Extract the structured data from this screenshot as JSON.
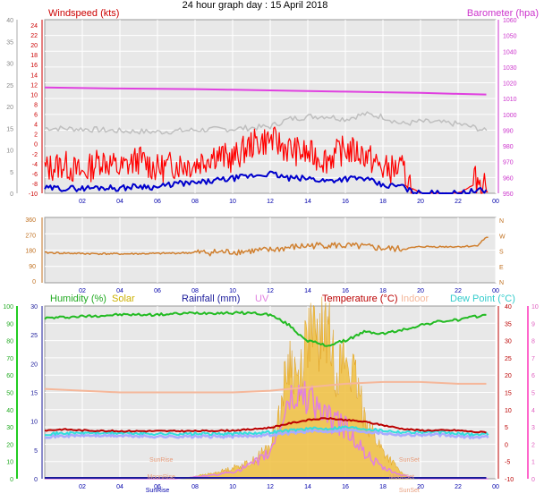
{
  "title": "24 hour graph day : 15 April 2018",
  "colors": {
    "wind": "#ff0000",
    "wind_avg": "#0000cc",
    "gust_bg": "#bfbfbf",
    "barometer": "#e040e0",
    "direction": "#d08030",
    "humidity": "#22bb22",
    "solar": "#f0c040",
    "rainfall": "#1a1a9a",
    "uv": "#e080e0",
    "temperature": "#bb0000",
    "indoor": "#f5b79a",
    "dewpoint": "#33dddd"
  },
  "chart_data": [
    {
      "type": "line",
      "panel": "wind-barometer",
      "left_axis": {
        "label": "Windspeed (kts)",
        "ticks": [
          "0",
          "5",
          "10",
          "15",
          "20",
          "25",
          "30",
          "35",
          "40"
        ],
        "ylim": [
          0,
          40
        ]
      },
      "left_axis_inner": {
        "ticks": [
          "-10",
          "-8",
          "-6",
          "-4",
          "-2",
          "0",
          "2",
          "4",
          "6",
          "8",
          "10",
          "12",
          "14",
          "16",
          "18",
          "20",
          "22",
          "24"
        ],
        "ylim": [
          -10,
          24
        ]
      },
      "right_axis": {
        "label": "Barometer (hpa)",
        "ticks": [
          "950",
          "960",
          "970",
          "980",
          "990",
          "1000",
          "1010",
          "1020",
          "1030",
          "1040",
          "1050",
          "1060"
        ],
        "ylim": [
          950,
          1060
        ]
      },
      "x_ticks": [
        "02",
        "04",
        "06",
        "08",
        "10",
        "12",
        "14",
        "16",
        "18",
        "20",
        "22",
        "00"
      ],
      "series": [
        {
          "role": "barometer",
          "unit": "hpa",
          "x": [
            0,
            2,
            4,
            6,
            8,
            10,
            12,
            14,
            16,
            18,
            20,
            22,
            23.5
          ],
          "y": [
            1017,
            1016.7,
            1016.4,
            1016.2,
            1016,
            1015.6,
            1015.2,
            1014.8,
            1014.4,
            1014,
            1013.6,
            1013,
            1012.6
          ]
        },
        {
          "role": "wind_gust_envelope",
          "unit": "kts",
          "x": [
            0,
            2,
            4,
            6,
            8,
            10,
            12,
            13,
            14,
            15,
            16,
            17,
            18,
            19,
            20,
            21,
            22,
            23,
            23.5
          ],
          "y": [
            13.2,
            13,
            12.6,
            12.4,
            12.8,
            13,
            13.5,
            15,
            15.5,
            15.6,
            15,
            16,
            15.5,
            14,
            14.5,
            14.3,
            14,
            13.2,
            12.5
          ]
        },
        {
          "role": "wind_speed",
          "unit": "kts",
          "x": [
            0,
            1,
            2,
            3,
            4,
            5,
            6,
            7,
            8,
            9,
            10,
            11,
            12,
            13,
            14,
            15,
            16,
            17,
            18,
            19,
            19.5,
            20,
            21,
            22,
            23,
            23.5
          ],
          "y": [
            4,
            5,
            3,
            6,
            4,
            6,
            4,
            5,
            5,
            7,
            6,
            9,
            10,
            8,
            7,
            6,
            8,
            7,
            4,
            4,
            1,
            0,
            0,
            0,
            2,
            1
          ]
        },
        {
          "role": "wind_average",
          "unit": "kts",
          "x": [
            0,
            1,
            2,
            3,
            4,
            5,
            6,
            7,
            8,
            9,
            10,
            11,
            12,
            13,
            14,
            15,
            16,
            17,
            18,
            19,
            19.5,
            20,
            21,
            22,
            23,
            23.5
          ],
          "y": [
            1,
            1,
            1,
            1.2,
            1,
            1.5,
            1.2,
            2,
            2,
            2.5,
            3,
            3.5,
            4,
            3,
            3,
            2.5,
            3,
            3,
            1.5,
            1.5,
            0.3,
            0,
            0,
            0,
            0.5,
            0.5
          ]
        }
      ]
    },
    {
      "type": "line",
      "panel": "wind-direction",
      "left_axis": {
        "ticks": [
          "0",
          "90",
          "180",
          "270",
          "360"
        ],
        "ylim": [
          0,
          360
        ]
      },
      "right_axis": {
        "ticks": [
          "N",
          "W",
          "S",
          "E",
          "N"
        ]
      },
      "x_ticks": [
        "02",
        "04",
        "06",
        "08",
        "10",
        "12",
        "14",
        "16",
        "18",
        "20",
        "22",
        "00"
      ],
      "series": [
        {
          "role": "direction",
          "unit": "deg",
          "x": [
            0,
            2,
            4,
            6,
            8,
            10,
            11,
            12,
            13,
            14,
            15,
            16,
            17,
            18,
            19,
            20,
            21,
            22,
            23,
            23.5
          ],
          "y": [
            165,
            160,
            158,
            160,
            165,
            170,
            175,
            180,
            195,
            205,
            210,
            205,
            200,
            190,
            185,
            200,
            200,
            200,
            205,
            255
          ]
        }
      ]
    },
    {
      "type": "line",
      "panel": "temperature-humidity",
      "legend": [
        "Humidity (%)",
        "Solar",
        "Rainfall (mm)",
        "UV",
        "Temperature (°C)",
        "Indoor",
        "Dew Point (°C)"
      ],
      "left_axis_humidity": {
        "ticks": [
          "0",
          "10",
          "20",
          "30",
          "40",
          "50",
          "60",
          "70",
          "80",
          "90",
          "100"
        ],
        "ylim": [
          0,
          100
        ]
      },
      "left_axis_rain": {
        "ticks": [
          "0",
          "5",
          "10",
          "15",
          "20",
          "25",
          "30"
        ],
        "ylim": [
          0,
          30
        ]
      },
      "right_axis_temp": {
        "ticks": [
          "-10",
          "-5",
          "0",
          "5",
          "10",
          "15",
          "20",
          "25",
          "30",
          "35",
          "40"
        ],
        "ylim": [
          -10,
          40
        ]
      },
      "right_axis_uv": {
        "ticks": [
          "0",
          "1",
          "2",
          "3",
          "4",
          "5",
          "6",
          "7",
          "8",
          "9",
          "10"
        ],
        "ylim": [
          0,
          10
        ]
      },
      "x_ticks": [
        "02",
        "04",
        "06",
        "08",
        "10",
        "12",
        "14",
        "16",
        "18",
        "20",
        "22",
        "00"
      ],
      "annotations": [
        "SunRise",
        "MoonRise",
        "SunRise",
        "SunSet",
        "MoonSet",
        "SunSet"
      ],
      "series": [
        {
          "name": "Humidity (%)",
          "role": "humidity",
          "unit": "%",
          "x": [
            0,
            2,
            4,
            6,
            8,
            10,
            11,
            12,
            13,
            13.5,
            14,
            15,
            16,
            17,
            18,
            19,
            20,
            21,
            22,
            23,
            23.5
          ],
          "y": [
            93,
            94,
            95,
            95,
            96,
            96,
            96,
            95,
            89,
            84,
            80,
            77,
            80,
            85,
            84,
            86,
            89,
            91,
            92,
            94,
            95
          ]
        },
        {
          "name": "Indoor",
          "role": "indoor",
          "unit": "°C",
          "x": [
            0,
            2,
            4,
            6,
            8,
            10,
            12,
            14,
            16,
            18,
            20,
            22,
            23.5
          ],
          "y": [
            16,
            15.5,
            15,
            15,
            15,
            15,
            15.5,
            16.5,
            17.5,
            18,
            18,
            17.5,
            17.5
          ]
        },
        {
          "name": "Temperature (°C)",
          "role": "temperature",
          "unit": "°C",
          "x": [
            0,
            1,
            2,
            4,
            6,
            8,
            10,
            11,
            12,
            13,
            14,
            15,
            16,
            17,
            18,
            19,
            20,
            21,
            22,
            23,
            23.5
          ],
          "y": [
            4,
            4.3,
            4,
            3.8,
            3.8,
            3.8,
            4,
            4.3,
            4.8,
            6,
            7,
            7.5,
            7,
            6.5,
            5.5,
            4.5,
            4,
            4,
            4,
            3.5,
            3.5
          ]
        },
        {
          "name": "Dew Point (°C)",
          "role": "dewpoint",
          "unit": "°C",
          "x": [
            0,
            2,
            4,
            6,
            8,
            10,
            12,
            13,
            14,
            15,
            16,
            17,
            18,
            19,
            20,
            21,
            22,
            23,
            23.5
          ],
          "y": [
            3,
            3.3,
            3.2,
            3,
            3,
            3,
            3.5,
            4,
            4.5,
            4.5,
            5,
            4.5,
            4,
            3.5,
            3.5,
            3.5,
            3,
            2.8,
            3
          ]
        },
        {
          "name": "UV",
          "role": "uv",
          "unit": "index",
          "x": [
            0,
            6,
            7,
            8,
            9,
            10,
            11,
            12,
            13,
            14,
            15,
            16,
            17,
            18,
            19,
            20,
            23.5
          ],
          "y": [
            0,
            0,
            0,
            0.1,
            0.2,
            0.4,
            0.8,
            1.5,
            4.5,
            5,
            3.5,
            3,
            1.5,
            0.6,
            0.2,
            0,
            0
          ]
        },
        {
          "name": "Solar",
          "role": "solar",
          "unit": "W/m2",
          "x": [
            7.5,
            8,
            9,
            10,
            11,
            12,
            12.5,
            13,
            13.5,
            14,
            14.5,
            15,
            15.5,
            16,
            16.5,
            17,
            17.5,
            18,
            18.5,
            19,
            19.5
          ],
          "y": [
            0,
            0.5,
            1,
            2,
            3,
            6,
            12,
            22,
            18,
            27,
            25,
            28,
            20,
            22,
            18,
            12,
            8,
            5,
            3,
            1,
            0
          ]
        },
        {
          "name": "Rainfall (mm)",
          "role": "rainfall",
          "unit": "mm",
          "x": [
            0,
            23.5
          ],
          "y": [
            0,
            0
          ]
        }
      ]
    }
  ]
}
